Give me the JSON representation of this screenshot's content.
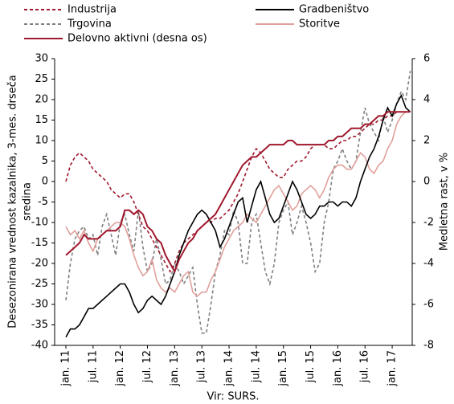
{
  "chart_data": {
    "type": "line",
    "y_label": [
      "Desezonirana vrednost kazalnika, 3-mes. drseča",
      "sredina"
    ],
    "y2_label": "Medletna rast, v %",
    "source": "Vir: SURS.",
    "categories": [
      "jan. 11",
      null,
      null,
      null,
      null,
      null,
      "jul. 11",
      null,
      null,
      null,
      null,
      null,
      "jan. 12",
      null,
      null,
      null,
      null,
      null,
      "jul. 12",
      null,
      null,
      null,
      null,
      null,
      "jan. 13",
      null,
      null,
      null,
      null,
      null,
      "jul. 13",
      null,
      null,
      null,
      null,
      null,
      "jan. 14",
      null,
      null,
      null,
      null,
      null,
      "jul. 14",
      null,
      null,
      null,
      null,
      null,
      "jan. 15",
      null,
      null,
      null,
      null,
      null,
      "jul. 15",
      null,
      null,
      null,
      null,
      null,
      "jan. 16",
      null,
      null,
      null,
      null,
      null,
      "jul. 16",
      null,
      null,
      null,
      null,
      null,
      "jan. 17",
      null,
      null,
      null,
      null
    ],
    "ylim": [
      -40,
      30
    ],
    "yticks": [
      -40,
      -35,
      -30,
      -25,
      -20,
      -15,
      -10,
      -5,
      0,
      5,
      10,
      15,
      20,
      25,
      30
    ],
    "y2lim": [
      -8,
      6
    ],
    "y2ticks": [
      -8,
      -6,
      -4,
      -2,
      0,
      2,
      4,
      6
    ],
    "series": [
      {
        "name": "Trgovina",
        "color": "#808080",
        "dash": true,
        "values": [
          -29,
          -20,
          -14,
          -12,
          -11,
          -14,
          -13,
          -18,
          -11,
          -8,
          -13,
          -18,
          -10,
          -8,
          -13,
          -17,
          -7,
          -16,
          -22,
          -20,
          -14,
          -19,
          -25,
          -24,
          -20,
          -22,
          -25,
          -23,
          -21,
          -30,
          -37,
          -37,
          -30,
          -22,
          -18,
          -12,
          -13,
          -7,
          -10,
          -20,
          -20,
          -10,
          -8,
          -15,
          -22,
          -25,
          -20,
          -10,
          -7,
          -5,
          -13,
          -10,
          -6,
          -10,
          -15,
          -22,
          -20,
          -10,
          -5,
          3,
          5,
          8,
          5,
          3,
          5,
          12,
          18,
          14,
          12,
          10,
          16,
          12,
          15,
          19,
          22,
          20,
          27
        ]
      },
      {
        "name": "Storitve",
        "color": "#e0a09c",
        "dash": false,
        "values": [
          -11,
          -13,
          -12,
          -14,
          -12,
          -15,
          -17,
          -14,
          -13,
          -12,
          -11,
          -10,
          -10,
          -11,
          -14,
          -18,
          -21,
          -23,
          -22,
          -19,
          -24,
          -26,
          -27,
          -26,
          -27,
          -25,
          -23,
          -22,
          -27,
          -28,
          -27,
          -27,
          -24,
          -22,
          -19,
          -16,
          -14,
          -12,
          -11,
          -10,
          -8,
          -9,
          -10,
          -8,
          -6,
          -4,
          -2,
          -1,
          -3,
          -5,
          -7,
          -6,
          -3,
          -2,
          -1,
          -2,
          -4,
          -2,
          1,
          3,
          4,
          4,
          3,
          3,
          5,
          7,
          6,
          3,
          2,
          4,
          5,
          8,
          10,
          14,
          16,
          17,
          17
        ]
      },
      {
        "name": "Industrija",
        "color": "#a0182d",
        "dash": true,
        "values": [
          0,
          4,
          6,
          7,
          6,
          5,
          3,
          2,
          1,
          0,
          -2,
          -3,
          -4,
          -3,
          -3,
          -5,
          -8,
          -11,
          -12,
          -14,
          -16,
          -18,
          -20,
          -22,
          -20,
          -17,
          -15,
          -14,
          -13,
          -12,
          -11,
          -10,
          -10,
          -9,
          -9,
          -8,
          -7,
          -5,
          -3,
          0,
          3,
          6,
          8,
          7,
          5,
          3,
          2,
          1,
          1,
          3,
          4,
          5,
          5,
          6,
          8,
          9,
          9,
          9,
          8,
          8,
          9,
          10,
          10,
          11,
          11,
          12,
          13,
          14,
          14,
          15,
          15,
          16,
          16,
          17,
          17,
          17,
          17
        ]
      },
      {
        "name": "Gradbeništvo",
        "color": "#000000",
        "dash": false,
        "values": [
          -38,
          -36,
          -36,
          -35,
          -33,
          -31,
          -31,
          -30,
          -29,
          -28,
          -27,
          -26,
          -25,
          -25,
          -27,
          -30,
          -32,
          -31,
          -29,
          -28,
          -29,
          -30,
          -28,
          -25,
          -22,
          -18,
          -15,
          -12,
          -10,
          -8,
          -7,
          -8,
          -10,
          -12,
          -16,
          -14,
          -11,
          -8,
          -5,
          -4,
          -10,
          -6,
          -2,
          0,
          -4,
          -8,
          -10,
          -9,
          -6,
          -3,
          0,
          -2,
          -5,
          -8,
          -9,
          -8,
          -6,
          -6,
          -5,
          -5,
          -6,
          -5,
          -5,
          -6,
          -4,
          0,
          3,
          6,
          8,
          11,
          15,
          18,
          16,
          19,
          21,
          18,
          17
        ]
      },
      {
        "name": "Delovno aktivni (desna os)",
        "color": "#a0182d",
        "dash": false,
        "axis": "y2",
        "values": [
          -3.6,
          -3.4,
          -3.2,
          -3,
          -2.6,
          -2.8,
          -2.8,
          -2.8,
          -2.6,
          -2.4,
          -2.4,
          -2.4,
          -2.2,
          -1.4,
          -1.4,
          -1.6,
          -1.4,
          -1.6,
          -2.2,
          -2.4,
          -2.8,
          -3,
          -3.6,
          -4,
          -4.4,
          -3.8,
          -3.4,
          -3,
          -2.8,
          -2.4,
          -2.2,
          -2,
          -1.8,
          -1.6,
          -1.2,
          -0.8,
          -0.4,
          0,
          0.4,
          0.8,
          1,
          1.2,
          1.2,
          1.4,
          1.6,
          1.8,
          1.8,
          1.8,
          1.8,
          2,
          2,
          1.8,
          1.8,
          1.8,
          1.8,
          1.8,
          1.8,
          1.8,
          2,
          2,
          2.2,
          2.2,
          2.4,
          2.6,
          2.6,
          2.6,
          2.8,
          2.8,
          3,
          3.2,
          3.2,
          3.4,
          3.4,
          3.4,
          3.4,
          3.4,
          3.4
        ]
      }
    ]
  }
}
